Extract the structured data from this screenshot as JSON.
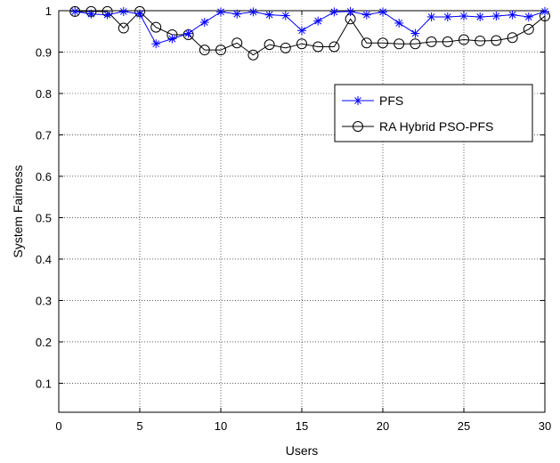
{
  "chart_data": {
    "type": "line",
    "title": "",
    "xlabel": "Users",
    "ylabel": "System Fairness",
    "xlim": [
      0,
      30
    ],
    "ylim": [
      0.03,
      1.0
    ],
    "xticks": [
      0,
      5,
      10,
      15,
      20,
      25,
      30
    ],
    "xtick_labels": [
      "0",
      "5",
      "10",
      "15",
      "20",
      "25",
      "30"
    ],
    "yticks": [
      0.1,
      0.2,
      0.3,
      0.4,
      0.5,
      0.6,
      0.7,
      0.8,
      0.9,
      1.0
    ],
    "ytick_labels": [
      "0.1",
      "0.2",
      "0.3",
      "0.4",
      "0.5",
      "0.6",
      "0.7",
      "0.8",
      "0.9",
      "1"
    ],
    "grid": true,
    "legend_position": "top-right",
    "x": [
      1,
      2,
      3,
      4,
      5,
      6,
      7,
      8,
      9,
      10,
      11,
      12,
      13,
      14,
      15,
      16,
      17,
      18,
      19,
      20,
      21,
      22,
      23,
      24,
      25,
      26,
      27,
      28,
      29,
      30
    ],
    "series": [
      {
        "name": "PFS",
        "color": "#0000ff",
        "marker": "asterisk",
        "values": [
          0.998,
          0.992,
          0.99,
          0.998,
          0.992,
          0.92,
          0.932,
          0.945,
          0.972,
          0.997,
          0.992,
          0.997,
          0.99,
          0.988,
          0.952,
          0.975,
          0.997,
          0.998,
          0.99,
          0.997,
          0.97,
          0.945,
          0.985,
          0.985,
          0.987,
          0.985,
          0.987,
          0.99,
          0.985,
          0.998
        ]
      },
      {
        "name": "RA Hybrid PSO-PFS",
        "color": "#000000",
        "marker": "circle",
        "values": [
          0.998,
          0.998,
          0.998,
          0.958,
          0.998,
          0.96,
          0.942,
          0.942,
          0.905,
          0.905,
          0.922,
          0.893,
          0.918,
          0.91,
          0.92,
          0.913,
          0.913,
          0.98,
          0.922,
          0.922,
          0.92,
          0.92,
          0.925,
          0.925,
          0.93,
          0.927,
          0.928,
          0.935,
          0.955,
          0.987
        ]
      }
    ]
  }
}
